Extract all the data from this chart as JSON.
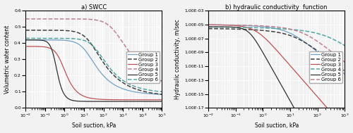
{
  "swcc_groups": [
    {
      "name": "Group 1",
      "color": "#70A0C8",
      "linestyle": "solid",
      "linewidth": 0.9,
      "theta_s": 0.42,
      "theta_r": 0.08,
      "alpha": 0.08,
      "n": 1.5
    },
    {
      "name": "Group 2",
      "color": "#404040",
      "linestyle": "dashed",
      "linewidth": 1.1,
      "theta_s": 0.48,
      "theta_r": 0.07,
      "alpha": 0.05,
      "n": 1.4
    },
    {
      "name": "Group 3",
      "color": "#C05050",
      "linestyle": "solid",
      "linewidth": 0.9,
      "theta_s": 0.38,
      "theta_r": 0.05,
      "alpha": 1.5,
      "n": 2.0
    },
    {
      "name": "Group 4",
      "color": "#C08090",
      "linestyle": "dashed",
      "linewidth": 1.1,
      "theta_s": 0.55,
      "theta_r": 0.08,
      "alpha": 0.003,
      "n": 1.3
    },
    {
      "name": "Group 5",
      "color": "#303030",
      "linestyle": "solid",
      "linewidth": 0.9,
      "theta_s": 0.42,
      "theta_r": 0.04,
      "alpha": 3.0,
      "n": 3.0
    },
    {
      "name": "Group 6",
      "color": "#50A8A0",
      "linestyle": "dashed",
      "linewidth": 1.1,
      "theta_s": 0.43,
      "theta_r": 0.09,
      "alpha": 0.025,
      "n": 1.45
    }
  ],
  "hcf_groups": [
    {
      "name": "Group 1",
      "color": "#70A0C8",
      "linestyle": "solid",
      "linewidth": 0.9,
      "ks": 1e-05,
      "theta_s": 0.42,
      "theta_r": 0.08,
      "alpha": 0.08,
      "n": 1.5
    },
    {
      "name": "Group 2",
      "color": "#404040",
      "linestyle": "dashed",
      "linewidth": 1.1,
      "ks": 3e-06,
      "theta_s": 0.48,
      "theta_r": 0.07,
      "alpha": 0.05,
      "n": 1.4
    },
    {
      "name": "Group 3",
      "color": "#C05050",
      "linestyle": "solid",
      "linewidth": 0.9,
      "ks": 1e-05,
      "theta_s": 0.38,
      "theta_r": 0.05,
      "alpha": 1.5,
      "n": 2.0
    },
    {
      "name": "Group 4",
      "color": "#50A8A0",
      "linestyle": "dashed",
      "linewidth": 1.1,
      "ks": 5e-06,
      "theta_s": 0.55,
      "theta_r": 0.08,
      "alpha": 0.003,
      "n": 1.3
    },
    {
      "name": "Group 5",
      "color": "#303030",
      "linestyle": "solid",
      "linewidth": 0.9,
      "ks": 5e-06,
      "theta_s": 0.42,
      "theta_r": 0.04,
      "alpha": 3.0,
      "n": 3.0
    },
    {
      "name": "Group 6",
      "color": "#C08090",
      "linestyle": "dashed",
      "linewidth": 1.1,
      "ks": 1e-05,
      "theta_s": 0.43,
      "theta_r": 0.09,
      "alpha": 0.025,
      "n": 1.45
    }
  ],
  "swcc_xlim": [
    0.01,
    100000
  ],
  "swcc_ylim": [
    0,
    0.6
  ],
  "swcc_yticks": [
    0,
    0.1,
    0.2,
    0.3,
    0.4,
    0.5,
    0.6
  ],
  "swcc_xlabel": "Soil suction, kPa",
  "swcc_ylabel": "Volumetric water content",
  "swcc_title": "a) SWCC",
  "hcf_xlim": [
    0.01,
    1000
  ],
  "hcf_ylim": [
    1e-17,
    0.001
  ],
  "hcf_yticks": [
    0.001,
    1e-05,
    1e-07,
    1e-09,
    1e-11,
    1e-13,
    1e-15,
    1e-17
  ],
  "hcf_ytick_labels": [
    "1.00E-03",
    "1.00E-05",
    "1.00E-07",
    "1.00E-09",
    "1.00E-11",
    "1.00E-13",
    "1.00E-15",
    "1.00E-17"
  ],
  "hcf_xlabel": "Soil suction, kPa",
  "hcf_ylabel": "Hydraulic conductivity, m/sec",
  "hcf_title": "b) hydraulic conductivity  function",
  "bg_color": "#F2F2F2",
  "grid_color": "#FFFFFF",
  "legend_fontsize": 5.0,
  "axis_fontsize": 5.5,
  "tick_fontsize": 4.5,
  "title_fontsize": 6.0
}
